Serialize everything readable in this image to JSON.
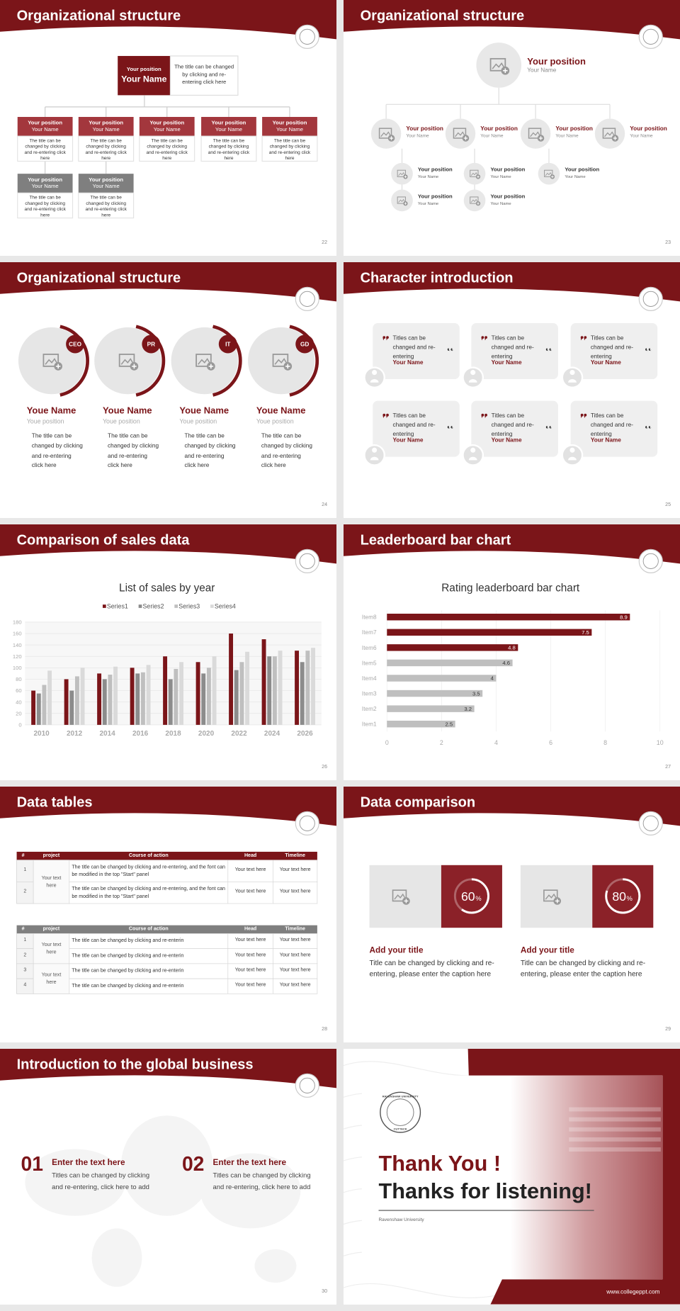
{
  "slides": [
    {
      "title": "Organizational structure",
      "page": "22",
      "head": {
        "position": "Your position",
        "name": "Your Name",
        "text": "The title can be changed by clicking and re-entering click here"
      },
      "members": [
        {
          "position": "Your position",
          "name": "Your Name",
          "text": "The title can be changed by clicking and re-entering click here"
        },
        {
          "position": "Your position",
          "name": "Your Name",
          "text": "The title can be changed by clicking and re-entering click here"
        },
        {
          "position": "Your position",
          "name": "Your Name",
          "text": "The title can be changed by clicking and re-entering click here"
        },
        {
          "position": "Your position",
          "name": "Your Name",
          "text": "The title can be changed by clicking and re-entering click here"
        },
        {
          "position": "Your position",
          "name": "Your Name",
          "text": "The title can be changed by clicking and re-entering click here"
        },
        {
          "position": "Your position",
          "name": "Your Name",
          "text": "The title can be changed by clicking and re-entering click here"
        },
        {
          "position": "Your position",
          "name": "Your Name",
          "text": "The title can be changed by clicking and re-entering click here"
        }
      ]
    },
    {
      "title": "Organizational structure",
      "page": "23",
      "head": {
        "position": "Your position",
        "name": "Your Name"
      },
      "nodes": [
        {
          "position": "Your position",
          "name": "Your Name"
        },
        {
          "position": "Your position",
          "name": "Your Name"
        },
        {
          "position": "Your position",
          "name": "Your Name"
        },
        {
          "position": "Your position",
          "name": "Your Name"
        }
      ],
      "subs": [
        {
          "position": "Your position",
          "name": "Your Name"
        },
        {
          "position": "Your position",
          "name": "Your Name"
        },
        {
          "position": "Your position",
          "name": "Your Name"
        },
        {
          "position": "Your position",
          "name": "Your Name"
        },
        {
          "position": "Your position",
          "name": "Your Name"
        }
      ]
    },
    {
      "title": "Organizational structure",
      "page": "24",
      "cards": [
        {
          "badge": "CEO",
          "name": "Youe Name",
          "position": "Youe position",
          "text": "The title can be changed by clicking and re-entering click here"
        },
        {
          "badge": "PR",
          "name": "Youe Name",
          "position": "Youe position",
          "text": "The title can be changed by clicking and re-entering click here"
        },
        {
          "badge": "IT",
          "name": "Youe Name",
          "position": "Youe position",
          "text": "The title can be changed by clicking and re-entering click here"
        },
        {
          "badge": "GD",
          "name": "Youe Name",
          "position": "Youe position",
          "text": "The title can be changed by clicking and re-entering click here"
        }
      ]
    },
    {
      "title": "Character introduction",
      "page": "25",
      "quotes": [
        {
          "text": "Titles can be changed and re-entering",
          "name": "Your Name"
        },
        {
          "text": "Titles can be changed and re-entering",
          "name": "Your Name"
        },
        {
          "text": "Titles can be changed and re-entering",
          "name": "Your Name"
        },
        {
          "text": "Titles can be changed and re-entering",
          "name": "Your Name"
        },
        {
          "text": "Titles can be changed and re-entering",
          "name": "Your Name"
        },
        {
          "text": "Titles can be changed and re-entering",
          "name": "Your Name"
        }
      ]
    },
    {
      "title": "Comparison of sales data",
      "page": "26",
      "chart_data": {
        "type": "bar",
        "title": "List of sales by year",
        "categories": [
          "2010",
          "2012",
          "2014",
          "2016",
          "2018",
          "2020",
          "2022",
          "2024",
          "2026"
        ],
        "series": [
          {
            "name": "Series1",
            "color": "#7b1519",
            "values": [
              60,
              80,
              90,
              100,
              120,
              110,
              160,
              150,
              130
            ]
          },
          {
            "name": "Series2",
            "color": "#8c8c8c",
            "values": [
              55,
              60,
              80,
              90,
              80,
              90,
              96,
              120,
              110
            ]
          },
          {
            "name": "Series3",
            "color": "#bfbfbf",
            "values": [
              70,
              85,
              88,
              92,
              98,
              100,
              110,
              120,
              130
            ]
          },
          {
            "name": "Series4",
            "color": "#dadada",
            "values": [
              95,
              100,
              102,
              105,
              110,
              120,
              128,
              130,
              135
            ]
          }
        ],
        "ylim": [
          0,
          180
        ],
        "yticks": [
          0,
          20,
          40,
          60,
          80,
          100,
          120,
          140,
          160,
          180
        ],
        "grid": true,
        "legend": "top"
      }
    },
    {
      "title": "Leaderboard bar chart",
      "page": "27",
      "chart_data": {
        "type": "barh",
        "title": "Rating leaderboard bar chart",
        "categories": [
          "Item1",
          "Item2",
          "Item3",
          "Item4",
          "Item5",
          "Item6",
          "Item7",
          "Item8"
        ],
        "values": [
          2.5,
          3.2,
          3.5,
          4,
          4.6,
          4.8,
          7.5,
          8.9
        ],
        "colors": [
          "#bfbfbf",
          "#bfbfbf",
          "#bfbfbf",
          "#bfbfbf",
          "#bfbfbf",
          "#7b1519",
          "#7b1519",
          "#7b1519"
        ],
        "xlim": [
          0,
          10
        ],
        "xticks": [
          0,
          2,
          4,
          6,
          8,
          10
        ],
        "grid": true
      }
    },
    {
      "title": "Data tables",
      "page": "28",
      "tables": [
        {
          "header": [
            "#",
            "project",
            "Course of action",
            "Head",
            "Timeline"
          ],
          "groups": [
            {
              "project": "Your text here",
              "rows": [
                [
                  "1",
                  "The title can be changed by clicking and re-entering, and the font can be modified in the top \"Start\" panel",
                  "Your text here",
                  "Your text here"
                ],
                [
                  "2",
                  "The title can be changed by clicking and re-entering, and the font can be modified in the top \"Start\" panel",
                  "Your text here",
                  "Your text here"
                ]
              ]
            }
          ]
        },
        {
          "header": [
            "#",
            "project",
            "Course of action",
            "Head",
            "Timeline"
          ],
          "groups": [
            {
              "project": "Your text here",
              "rows": [
                [
                  "1",
                  "The title can be changed by clicking and re-enterin",
                  "Your text here",
                  "Your text here"
                ],
                [
                  "2",
                  "The title can be changed by clicking and re-enterin",
                  "Your text here",
                  "Your text here"
                ]
              ]
            },
            {
              "project": "Your text here",
              "rows": [
                [
                  "3",
                  "The title can be changed by clicking and re-enterin",
                  "Your text here",
                  "Your text here"
                ],
                [
                  "4",
                  "The title can be changed by clicking and re-enterin",
                  "Your text here",
                  "Your text here"
                ]
              ]
            }
          ]
        }
      ]
    },
    {
      "title": "Data comparison",
      "page": "29",
      "items": [
        {
          "percent": 60,
          "unit": "%",
          "title": "Add your title",
          "text": "Title can be changed by clicking and re-entering, please enter the caption here"
        },
        {
          "percent": 80,
          "unit": "%",
          "title": "Add your title",
          "text": "Title can be changed by clicking and re-entering, please enter the caption here"
        }
      ]
    },
    {
      "title": "Introduction to the global business",
      "page": "30",
      "points": [
        {
          "number": "01",
          "title": "Enter the text here",
          "text": "Titles can be changed by clicking and re-entering, click here to add"
        },
        {
          "number": "02",
          "title": "Enter the text here",
          "text": "Titles can be changed by clicking and re-entering, click here to add"
        }
      ]
    },
    {
      "thanks": "Thank You !",
      "closing": "Thanks for listening!",
      "university": "Ravenshaw University",
      "website": "www.collegeppt.com",
      "seal": {
        "top": "RAVENSHAW UNIVERSITY",
        "bottom": "CUTTACK"
      }
    }
  ]
}
